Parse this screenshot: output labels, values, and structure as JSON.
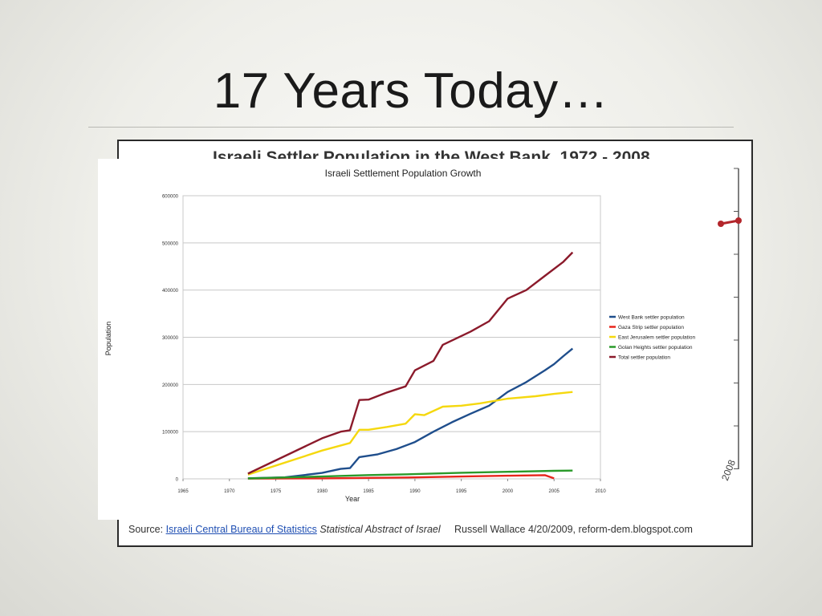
{
  "slide": {
    "title": "17 Years Today…"
  },
  "background_chart": {
    "title": "Israeli Settler Population in the West Bank, 1972 - 2008",
    "source_label": "Source:",
    "source_link": "Israeli Central Bureau of Statistics",
    "source_pub": "Statistical Abstract of Israel",
    "credit": "Russell Wallace 4/20/2009,  reform-dem.blogspot.com",
    "edge_year": "2008"
  },
  "colors": {
    "west_bank": "#1f4e8c",
    "gaza": "#e8251c",
    "east_jerusalem": "#f5d80e",
    "golan": "#2a9a2a",
    "total": "#8b1a2b",
    "grid": "#c8c8c8"
  },
  "chart_data": {
    "type": "line",
    "title": "Israeli Settlement Population Growth",
    "xlabel": "Year",
    "ylabel": "Population",
    "xlim": [
      1965,
      2010
    ],
    "ylim": [
      0,
      600000
    ],
    "x_ticks": [
      "1965",
      "1970",
      "1975",
      "1980",
      "1985",
      "1990",
      "1995",
      "2000",
      "2005",
      "2010"
    ],
    "y_ticks": [
      "0",
      "100000",
      "200000",
      "300000",
      "400000",
      "500000",
      "600000"
    ],
    "grid": true,
    "legend_position": "right",
    "series": [
      {
        "name": "West Bank settler population",
        "color": "#1f4e8c",
        "points": [
          [
            1972,
            1200
          ],
          [
            1976,
            3200
          ],
          [
            1980,
            12500
          ],
          [
            1982,
            21000
          ],
          [
            1983,
            22800
          ],
          [
            1984,
            46000
          ],
          [
            1986,
            52000
          ],
          [
            1988,
            63000
          ],
          [
            1990,
            78000
          ],
          [
            1992,
            100000
          ],
          [
            1994,
            120000
          ],
          [
            1996,
            138000
          ],
          [
            1998,
            155000
          ],
          [
            2000,
            184000
          ],
          [
            2002,
            205000
          ],
          [
            2004,
            230000
          ],
          [
            2005,
            243000
          ],
          [
            2006,
            260000
          ],
          [
            2007,
            276000
          ]
        ]
      },
      {
        "name": "Gaza Strip settler population",
        "color": "#e8251c",
        "points": [
          [
            1972,
            500
          ],
          [
            1980,
            1000
          ],
          [
            1985,
            2100
          ],
          [
            1990,
            3000
          ],
          [
            1995,
            5000
          ],
          [
            2000,
            6700
          ],
          [
            2004,
            7800
          ],
          [
            2005,
            1000
          ]
        ]
      },
      {
        "name": "East Jerusalem settler population",
        "color": "#f5d80e",
        "points": [
          [
            1972,
            9000
          ],
          [
            1980,
            60000
          ],
          [
            1983,
            76000
          ],
          [
            1984,
            104000
          ],
          [
            1985,
            104000
          ],
          [
            1987,
            110000
          ],
          [
            1989,
            117000
          ],
          [
            1990,
            137000
          ],
          [
            1991,
            135000
          ],
          [
            1993,
            153000
          ],
          [
            1995,
            155000
          ],
          [
            1997,
            160000
          ],
          [
            2000,
            170000
          ],
          [
            2003,
            175000
          ],
          [
            2005,
            180000
          ],
          [
            2007,
            184000
          ]
        ]
      },
      {
        "name": "Golan Heights settler population",
        "color": "#2a9a2a",
        "points": [
          [
            1972,
            800
          ],
          [
            1980,
            5000
          ],
          [
            1985,
            8000
          ],
          [
            1990,
            10000
          ],
          [
            1995,
            13000
          ],
          [
            2000,
            15000
          ],
          [
            2005,
            17000
          ],
          [
            2007,
            17500
          ]
        ]
      },
      {
        "name": "Total settler population",
        "color": "#8b1a2b",
        "points": [
          [
            1972,
            11000
          ],
          [
            1980,
            86000
          ],
          [
            1982,
            100000
          ],
          [
            1983,
            103000
          ],
          [
            1984,
            167000
          ],
          [
            1985,
            168000
          ],
          [
            1987,
            183000
          ],
          [
            1989,
            196000
          ],
          [
            1990,
            230000
          ],
          [
            1992,
            250000
          ],
          [
            1993,
            284000
          ],
          [
            1996,
            312000
          ],
          [
            1998,
            334000
          ],
          [
            2000,
            382000
          ],
          [
            2002,
            400000
          ],
          [
            2004,
            430000
          ],
          [
            2006,
            460000
          ],
          [
            2007,
            480000
          ]
        ]
      }
    ]
  }
}
